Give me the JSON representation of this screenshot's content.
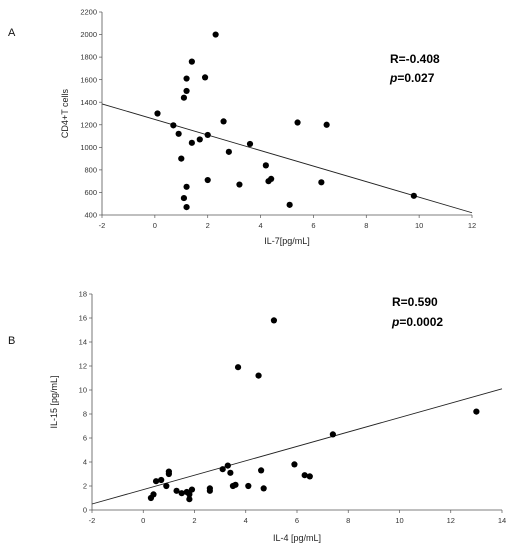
{
  "chart_data": [
    {
      "type": "scatter",
      "panel_label": "A",
      "xlabel": "IL-7[pg/mL]",
      "ylabel": "CD4+T cells",
      "xlim": [
        -2,
        12
      ],
      "ylim": [
        400,
        2200
      ],
      "xticks": [
        -2,
        0,
        2,
        4,
        6,
        8,
        10,
        12
      ],
      "yticks": [
        400,
        600,
        800,
        1000,
        1200,
        1400,
        1600,
        1800,
        2000,
        2200
      ],
      "annotations": {
        "r": "R=-0.408",
        "p_label": "p",
        "p_value": "=0.027"
      },
      "regression_line": {
        "x": [
          -2,
          12
        ],
        "y": [
          1385,
          420
        ]
      },
      "points": [
        {
          "x": 0.1,
          "y": 1300
        },
        {
          "x": 0.7,
          "y": 1195
        },
        {
          "x": 0.9,
          "y": 1120
        },
        {
          "x": 1.0,
          "y": 900
        },
        {
          "x": 1.1,
          "y": 1440
        },
        {
          "x": 1.2,
          "y": 1500
        },
        {
          "x": 1.2,
          "y": 1610
        },
        {
          "x": 1.4,
          "y": 1760
        },
        {
          "x": 1.1,
          "y": 550
        },
        {
          "x": 1.2,
          "y": 470
        },
        {
          "x": 1.2,
          "y": 650
        },
        {
          "x": 1.4,
          "y": 1040
        },
        {
          "x": 1.7,
          "y": 1070
        },
        {
          "x": 1.9,
          "y": 1620
        },
        {
          "x": 2.0,
          "y": 1110
        },
        {
          "x": 2.0,
          "y": 710
        },
        {
          "x": 2.3,
          "y": 2000
        },
        {
          "x": 2.6,
          "y": 1230
        },
        {
          "x": 2.8,
          "y": 960
        },
        {
          "x": 3.2,
          "y": 670
        },
        {
          "x": 3.6,
          "y": 1030
        },
        {
          "x": 4.2,
          "y": 840
        },
        {
          "x": 4.3,
          "y": 700
        },
        {
          "x": 4.4,
          "y": 720
        },
        {
          "x": 5.1,
          "y": 490
        },
        {
          "x": 5.4,
          "y": 1220
        },
        {
          "x": 6.3,
          "y": 690
        },
        {
          "x": 6.5,
          "y": 1200
        },
        {
          "x": 9.8,
          "y": 570
        }
      ]
    },
    {
      "type": "scatter",
      "panel_label": "B",
      "xlabel": "IL-4 [pg/mL]",
      "ylabel": "IL-15 [pg/mL]",
      "xlim": [
        -2,
        14
      ],
      "ylim": [
        0,
        18
      ],
      "xticks": [
        -2,
        0,
        2,
        4,
        6,
        8,
        10,
        12,
        14
      ],
      "yticks": [
        0,
        2,
        4,
        6,
        8,
        10,
        12,
        14,
        16,
        18
      ],
      "annotations": {
        "r": "R=0.590",
        "p_label": "p",
        "p_value": "=0.0002"
      },
      "regression_line": {
        "x": [
          -2,
          14
        ],
        "y": [
          0.5,
          10.1
        ]
      },
      "points": [
        {
          "x": 0.3,
          "y": 1.0
        },
        {
          "x": 0.4,
          "y": 1.3
        },
        {
          "x": 0.5,
          "y": 2.4
        },
        {
          "x": 0.7,
          "y": 2.5
        },
        {
          "x": 0.9,
          "y": 2.0
        },
        {
          "x": 1.0,
          "y": 3.0
        },
        {
          "x": 1.0,
          "y": 3.2
        },
        {
          "x": 1.3,
          "y": 1.6
        },
        {
          "x": 1.5,
          "y": 1.4
        },
        {
          "x": 1.7,
          "y": 1.5
        },
        {
          "x": 1.8,
          "y": 0.9
        },
        {
          "x": 1.9,
          "y": 1.7
        },
        {
          "x": 1.8,
          "y": 1.3
        },
        {
          "x": 2.6,
          "y": 1.8
        },
        {
          "x": 2.6,
          "y": 1.6
        },
        {
          "x": 3.1,
          "y": 3.4
        },
        {
          "x": 3.3,
          "y": 3.7
        },
        {
          "x": 3.4,
          "y": 3.1
        },
        {
          "x": 3.5,
          "y": 2.0
        },
        {
          "x": 3.6,
          "y": 2.1
        },
        {
          "x": 3.7,
          "y": 11.9
        },
        {
          "x": 4.1,
          "y": 2.0
        },
        {
          "x": 4.5,
          "y": 11.2
        },
        {
          "x": 4.6,
          "y": 3.3
        },
        {
          "x": 4.7,
          "y": 1.8
        },
        {
          "x": 5.1,
          "y": 15.8
        },
        {
          "x": 5.9,
          "y": 3.8
        },
        {
          "x": 6.3,
          "y": 2.9
        },
        {
          "x": 6.5,
          "y": 2.8
        },
        {
          "x": 7.4,
          "y": 6.3
        },
        {
          "x": 13.0,
          "y": 8.2
        }
      ]
    }
  ]
}
